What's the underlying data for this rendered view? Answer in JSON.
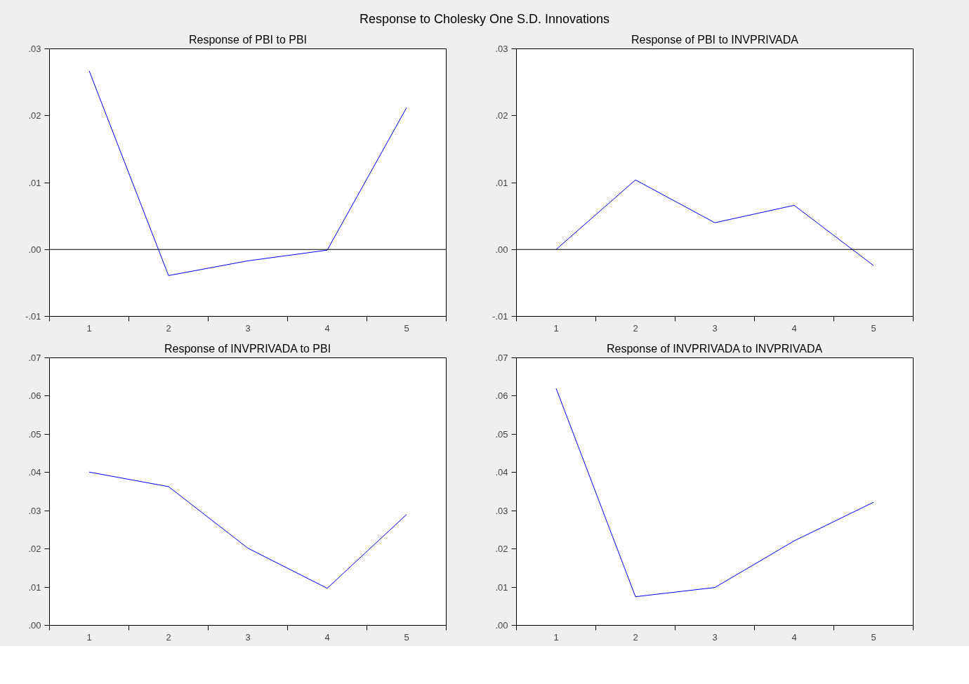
{
  "chart_data": [
    {
      "type": "line",
      "title": "Response of PBI to PBI",
      "annotations": [
        "Response to Cholesky One S.D. Innovations"
      ],
      "x": [
        1,
        2,
        3,
        4,
        5
      ],
      "series": [
        {
          "color": "#0000ff",
          "values": [
            0.0267,
            -0.0039,
            -0.0017,
            -0.0001,
            0.0212
          ]
        }
      ],
      "xlim": [
        0.5,
        5.5
      ],
      "xticks": [
        {
          "value": 0.5,
          "label": null
        },
        1,
        {
          "value": 1.5,
          "label": null
        },
        2,
        {
          "value": 2.5,
          "label": null
        },
        3,
        {
          "value": 3.5,
          "label": null
        },
        4,
        {
          "value": 4.5,
          "label": null
        },
        5,
        {
          "value": 5.5,
          "label": null
        }
      ],
      "ylim": [
        -0.01,
        0.03
      ],
      "yticks": [
        {
          "value": -0.01,
          "label": "-.01"
        },
        {
          "value": 0.0,
          "label": ".00"
        },
        {
          "value": 0.01,
          "label": ".01"
        },
        {
          "value": 0.02,
          "label": ".02"
        },
        {
          "value": 0.03,
          "label": ".03"
        }
      ],
      "ref_lines": [
        {
          "axis": "y",
          "value": 0,
          "color": "#000000"
        }
      ],
      "grid": false
    },
    {
      "type": "line",
      "title": "Response of PBI to INVPRIVADA",
      "x": [
        1,
        2,
        3,
        4,
        5
      ],
      "series": [
        {
          "color": "#0000ff",
          "values": [
            0.0,
            0.0104,
            0.004,
            0.0066,
            -0.0024
          ]
        }
      ],
      "xlim": [
        0.5,
        5.5
      ],
      "xticks": [
        {
          "value": 0.5,
          "label": null
        },
        1,
        {
          "value": 1.5,
          "label": null
        },
        2,
        {
          "value": 2.5,
          "label": null
        },
        3,
        {
          "value": 3.5,
          "label": null
        },
        4,
        {
          "value": 4.5,
          "label": null
        },
        5,
        {
          "value": 5.5,
          "label": null
        }
      ],
      "ylim": [
        -0.01,
        0.03
      ],
      "yticks": [
        {
          "value": -0.01,
          "label": "-.01"
        },
        {
          "value": 0.0,
          "label": ".00"
        },
        {
          "value": 0.01,
          "label": ".01"
        },
        {
          "value": 0.02,
          "label": ".02"
        },
        {
          "value": 0.03,
          "label": ".03"
        }
      ],
      "ref_lines": [
        {
          "axis": "y",
          "value": 0,
          "color": "#000000"
        }
      ],
      "grid": false
    },
    {
      "type": "line",
      "title": "Response of INVPRIVADA to PBI",
      "x": [
        1,
        2,
        3,
        4,
        5
      ],
      "series": [
        {
          "color": "#0000ff",
          "values": [
            0.0401,
            0.0363,
            0.0202,
            0.0097,
            0.029
          ]
        }
      ],
      "xlim": [
        0.5,
        5.5
      ],
      "xticks": [
        {
          "value": 0.5,
          "label": null
        },
        1,
        {
          "value": 1.5,
          "label": null
        },
        2,
        {
          "value": 2.5,
          "label": null
        },
        3,
        {
          "value": 3.5,
          "label": null
        },
        4,
        {
          "value": 4.5,
          "label": null
        },
        5,
        {
          "value": 5.5,
          "label": null
        }
      ],
      "ylim": [
        0.0,
        0.07
      ],
      "yticks": [
        {
          "value": 0.0,
          "label": ".00"
        },
        {
          "value": 0.01,
          "label": ".01"
        },
        {
          "value": 0.02,
          "label": ".02"
        },
        {
          "value": 0.03,
          "label": ".03"
        },
        {
          "value": 0.04,
          "label": ".04"
        },
        {
          "value": 0.05,
          "label": ".05"
        },
        {
          "value": 0.06,
          "label": ".06"
        },
        {
          "value": 0.07,
          "label": ".07"
        }
      ],
      "grid": false
    },
    {
      "type": "line",
      "title": "Response of INVPRIVADA to INVPRIVADA",
      "x": [
        1,
        2,
        3,
        4,
        5
      ],
      "series": [
        {
          "color": "#0000ff",
          "values": [
            0.062,
            0.0075,
            0.0099,
            0.0221,
            0.0322
          ]
        }
      ],
      "xlim": [
        0.5,
        5.5
      ],
      "xticks": [
        {
          "value": 0.5,
          "label": null
        },
        1,
        {
          "value": 1.5,
          "label": null
        },
        2,
        {
          "value": 2.5,
          "label": null
        },
        3,
        {
          "value": 3.5,
          "label": null
        },
        4,
        {
          "value": 4.5,
          "label": null
        },
        5,
        {
          "value": 5.5,
          "label": null
        }
      ],
      "ylim": [
        0.0,
        0.07
      ],
      "yticks": [
        {
          "value": 0.0,
          "label": ".00"
        },
        {
          "value": 0.01,
          "label": ".01"
        },
        {
          "value": 0.02,
          "label": ".02"
        },
        {
          "value": 0.03,
          "label": ".03"
        },
        {
          "value": 0.04,
          "label": ".04"
        },
        {
          "value": 0.05,
          "label": ".05"
        },
        {
          "value": 0.06,
          "label": ".06"
        },
        {
          "value": 0.07,
          "label": ".07"
        }
      ],
      "grid": false
    }
  ]
}
